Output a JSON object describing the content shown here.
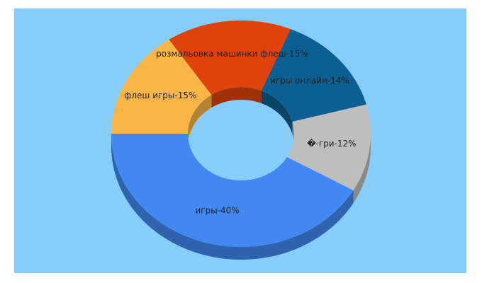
{
  "chart_data": {
    "type": "donut3d",
    "values": [
      40,
      12,
      14,
      15,
      15
    ],
    "value_labels": [
      "игры-40%",
      "�-гри-12%",
      "игры онлайн-14%",
      "розмальовка машинки флеш-15%",
      "флеш игры-15%"
    ],
    "colors": [
      "#4189f0",
      "#bebebe",
      "#0c5f92",
      "#e0420b",
      "#fbb546"
    ]
  }
}
